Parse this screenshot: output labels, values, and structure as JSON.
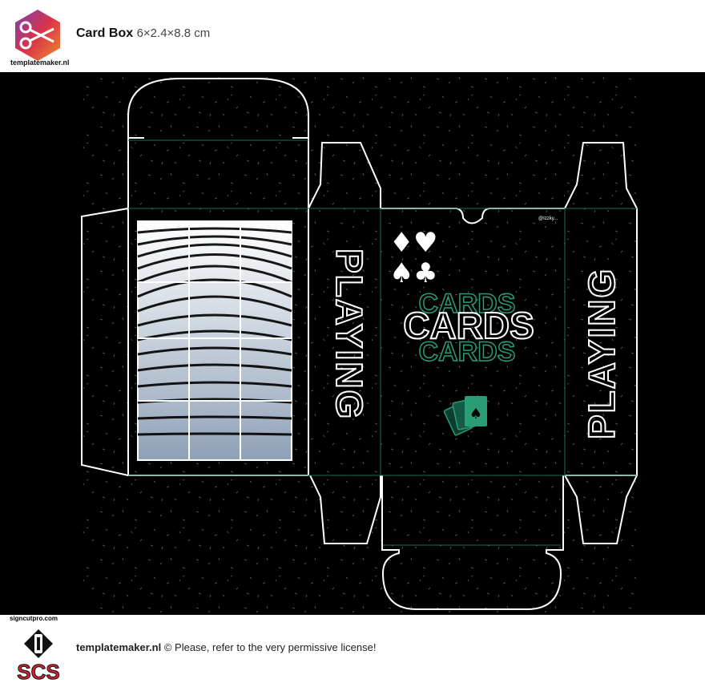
{
  "header": {
    "logo_caption": "templatemaker.nl",
    "title": "Card Box",
    "dimensions": "6×2.4×8.8 cm"
  },
  "template": {
    "side_text_left": "PLAYING",
    "side_text_right": "PLAYING",
    "front_big_text": "CARDS",
    "front_echo_top": "CARDS",
    "front_echo_bottom": "CARDS",
    "credit_tag": "@Izzky...",
    "suits": [
      "♦",
      "♥",
      "♠",
      "♣"
    ],
    "accent_color": "#2a9d76",
    "line_color": "#ffffff",
    "fold_color": "#1d6b55"
  },
  "footer": {
    "scs_caption": "signcutpro.com",
    "scs_letters": "SCS",
    "brand": "templatemaker.nl",
    "notice": "© Please, refer to the very permissive license!"
  }
}
